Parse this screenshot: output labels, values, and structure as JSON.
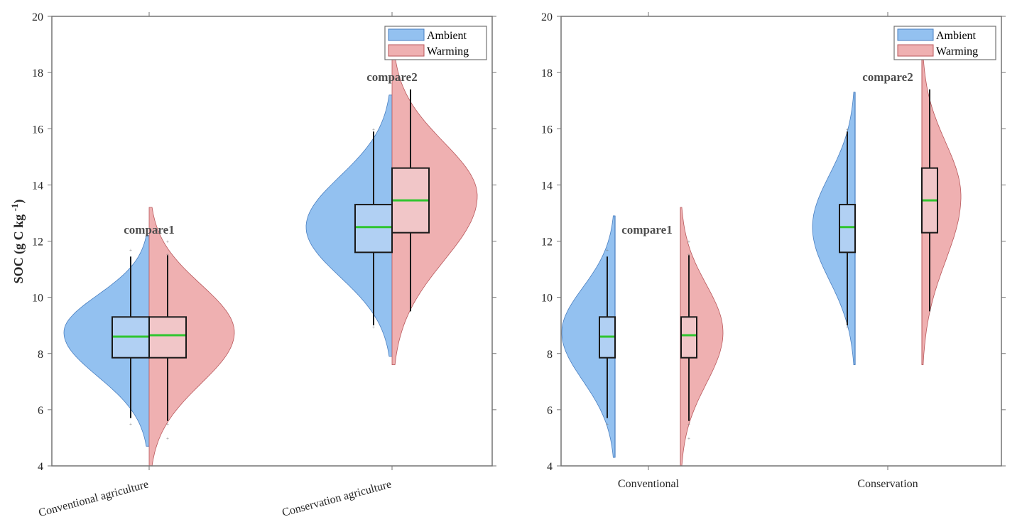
{
  "colors": {
    "ambient_fill": "#93c1f0",
    "ambient_edge": "#4a7fc0",
    "ambient_box": "#b1d0f3",
    "warming_fill": "#efb0b1",
    "warming_edge": "#b8585c",
    "warming_box": "#f1c6c8",
    "median": "#2fc52f",
    "axis": "#737373"
  },
  "chart_data": [
    {
      "type": "violin",
      "style": "split",
      "ylabel": "SOC (g C kg",
      "ylabel_sup": "-1",
      "ylabel_close": ")",
      "ylim": [
        4,
        20
      ],
      "yticks": [
        4,
        6,
        8,
        10,
        12,
        14,
        16,
        18,
        20
      ],
      "yticklabels": [
        "4",
        "6",
        "8",
        "10",
        "12",
        "14",
        "16",
        "18",
        "20"
      ],
      "categories": [
        "Conventional agriculture",
        "Conservation agriculture"
      ],
      "xtick_rotation": 15,
      "legend": {
        "entries": [
          "Ambient",
          "Warming"
        ],
        "placement": "top-right"
      },
      "annotations": [
        "compare1",
        "compare2"
      ],
      "series": [
        {
          "name": "Ambient",
          "groups": [
            {
              "q1": 7.85,
              "median": 8.6,
              "q3": 9.3,
              "whisker_low": 5.7,
              "whisker_high": 11.45,
              "outliers": [
                5.5,
                11.7
              ],
              "kde_min": 4.7,
              "kde_max": 12.2,
              "kde_mode": 8.75,
              "kde_width": 1.0
            },
            {
              "q1": 11.6,
              "median": 12.5,
              "q3": 13.3,
              "whisker_low": 9.0,
              "whisker_high": 15.9,
              "outliers": [
                8.95,
                16.0
              ],
              "kde_min": 7.9,
              "kde_max": 17.2,
              "kde_mode": 12.5,
              "kde_width": 1.0
            }
          ]
        },
        {
          "name": "Warming",
          "groups": [
            {
              "q1": 7.85,
              "median": 8.65,
              "q3": 9.3,
              "whisker_low": 5.6,
              "whisker_high": 11.5,
              "outliers": [
                5.0,
                5.5,
                11.55,
                12.0
              ],
              "kde_min": 4.0,
              "kde_max": 13.2,
              "kde_mode": 8.75,
              "kde_width": 1.0
            },
            {
              "q1": 12.3,
              "median": 13.45,
              "q3": 14.6,
              "whisker_low": 9.5,
              "whisker_high": 17.4,
              "outliers": [],
              "kde_min": 7.6,
              "kde_max": 18.6,
              "kde_mode": 13.6,
              "kde_width": 1.0
            }
          ]
        }
      ]
    },
    {
      "type": "violin",
      "style": "half-separated",
      "ylim": [
        4,
        20
      ],
      "yticks": [
        4,
        6,
        8,
        10,
        12,
        14,
        16,
        18,
        20
      ],
      "yticklabels": [
        "4",
        "6",
        "8",
        "10",
        "12",
        "14",
        "16",
        "18",
        "20"
      ],
      "categories": [
        "Conventional",
        "Conservation"
      ],
      "legend": {
        "entries": [
          "Ambient",
          "Warming"
        ],
        "placement": "top-right"
      },
      "annotations": [
        "compare1",
        "compare2"
      ]
    }
  ]
}
